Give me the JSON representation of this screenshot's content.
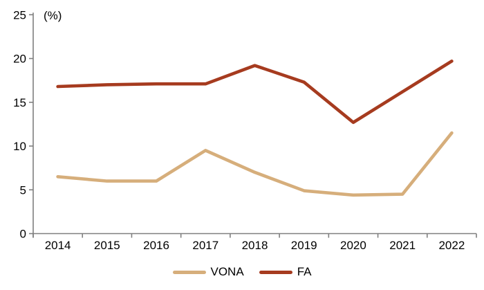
{
  "chart_data": {
    "type": "line",
    "title": "",
    "ylabel": "(%)",
    "xlabel": "",
    "categories": [
      "2014",
      "2015",
      "2016",
      "2017",
      "2018",
      "2019",
      "2020",
      "2021",
      "2022"
    ],
    "series": [
      {
        "name": "VONA",
        "color": "#D6AE7B",
        "values": [
          6.5,
          6.0,
          6.0,
          9.5,
          7.0,
          4.9,
          4.4,
          4.5,
          11.5
        ]
      },
      {
        "name": "FA",
        "color": "#A63B1F",
        "values": [
          16.8,
          17.0,
          17.1,
          17.1,
          19.2,
          17.3,
          12.7,
          16.2,
          19.7
        ]
      }
    ],
    "ylim": [
      0,
      25
    ],
    "yticks": [
      0,
      5,
      10,
      15,
      20,
      25
    ],
    "grid": false,
    "legend_position": "bottom",
    "axis_color": "#7F7F7F",
    "text_color": "#000000",
    "line_width": 4.6
  }
}
